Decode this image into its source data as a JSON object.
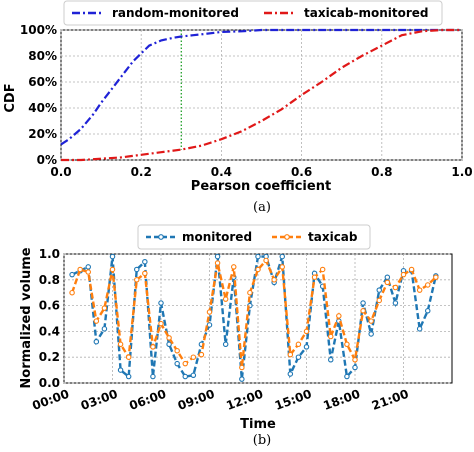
{
  "chart_data": [
    {
      "type": "line",
      "caption": "(a)",
      "xlabel": "Pearson coefficient",
      "ylabel": "CDF",
      "xlim": [
        0,
        1.0
      ],
      "ylim": [
        0,
        1.0
      ],
      "xticks": [
        "0.0",
        "0.2",
        "0.4",
        "0.6",
        "0.8",
        "1.0"
      ],
      "yticks": [
        "0%",
        "20%",
        "40%",
        "60%",
        "80%",
        "100%"
      ],
      "grid": true,
      "legend_position": "top",
      "series": [
        {
          "name": "random-monitored",
          "color": "#1f22d6",
          "style": "dash-dot",
          "x": [
            0,
            0.02,
            0.05,
            0.08,
            0.1,
            0.12,
            0.15,
            0.18,
            0.2,
            0.22,
            0.25,
            0.28,
            0.3,
            0.33,
            0.36,
            0.4,
            0.45,
            0.5,
            0.6,
            0.7,
            0.8,
            0.9,
            1.0
          ],
          "y": [
            0.12,
            0.16,
            0.24,
            0.35,
            0.44,
            0.52,
            0.64,
            0.76,
            0.82,
            0.88,
            0.92,
            0.94,
            0.95,
            0.96,
            0.97,
            0.985,
            0.99,
            1.0,
            1.0,
            1.0,
            1.0,
            1.0,
            1.0
          ]
        },
        {
          "name": "taxicab-monitored",
          "color": "#e01818",
          "style": "dash-dot",
          "x": [
            0,
            0.05,
            0.1,
            0.15,
            0.2,
            0.25,
            0.3,
            0.35,
            0.4,
            0.45,
            0.5,
            0.55,
            0.6,
            0.65,
            0.7,
            0.75,
            0.8,
            0.85,
            0.9,
            0.95,
            1.0
          ],
          "y": [
            0,
            0,
            0.01,
            0.02,
            0.04,
            0.06,
            0.08,
            0.11,
            0.16,
            0.22,
            0.3,
            0.39,
            0.5,
            0.6,
            0.71,
            0.8,
            0.88,
            0.96,
            0.99,
            1.0,
            1.0
          ]
        }
      ],
      "reference_line": {
        "x": 0.3,
        "color": "#22a02a",
        "style": "dotted"
      }
    },
    {
      "type": "line",
      "caption": "(b)",
      "xlabel": "Time",
      "ylabel": "Normalized volume",
      "xlim": [
        0,
        24
      ],
      "ylim": [
        0,
        1.0
      ],
      "xticks": [
        "00:00",
        "03:00",
        "06:00",
        "09:00",
        "12:00",
        "15:00",
        "18:00",
        "21:00"
      ],
      "xtick_hours": [
        0,
        3,
        6,
        9,
        12,
        15,
        18,
        21
      ],
      "yticks": [
        "0.0",
        "0.2",
        "0.4",
        "0.6",
        "0.8",
        "1.0"
      ],
      "grid": true,
      "legend_position": "top",
      "series": [
        {
          "name": "monitored",
          "color": "#1f77b4",
          "style": "dashed-marker",
          "x": [
            0.5,
            1,
            1.5,
            2,
            2.5,
            3,
            3.5,
            4,
            4.5,
            5,
            5.5,
            6,
            6.5,
            7,
            7.5,
            8,
            8.5,
            9,
            9.5,
            10,
            10.5,
            11,
            11.5,
            12,
            12.5,
            13,
            13.5,
            14,
            14.5,
            15,
            15.5,
            16,
            16.5,
            17,
            17.5,
            18,
            18.5,
            19,
            19.5,
            20,
            20.5,
            21,
            21.5,
            22,
            22.5,
            23
          ],
          "y": [
            0.84,
            0.87,
            0.9,
            0.32,
            0.42,
            0.98,
            0.1,
            0.05,
            0.88,
            0.94,
            0.05,
            0.62,
            0.3,
            0.15,
            0.05,
            0.06,
            0.3,
            0.45,
            0.98,
            0.3,
            0.82,
            0.03,
            0.6,
            0.98,
            0.98,
            0.78,
            0.98,
            0.07,
            0.2,
            0.28,
            0.85,
            0.75,
            0.18,
            0.48,
            0.05,
            0.12,
            0.62,
            0.38,
            0.72,
            0.82,
            0.62,
            0.87,
            0.87,
            0.42,
            0.56,
            0.83
          ]
        },
        {
          "name": "taxicab",
          "color": "#ff7f0e",
          "style": "dashed-marker",
          "x": [
            0.5,
            1,
            1.5,
            2,
            2.5,
            3,
            3.5,
            4,
            4.5,
            5,
            5.5,
            6,
            6.5,
            7,
            7.5,
            8,
            8.5,
            9,
            9.5,
            10,
            10.5,
            11,
            11.5,
            12,
            12.5,
            13,
            13.5,
            14,
            14.5,
            15,
            15.5,
            16,
            16.5,
            17,
            17.5,
            18,
            18.5,
            19,
            19.5,
            20,
            20.5,
            21,
            21.5,
            22,
            22.5,
            23
          ],
          "y": [
            0.7,
            0.88,
            0.86,
            0.48,
            0.58,
            0.88,
            0.3,
            0.2,
            0.8,
            0.85,
            0.28,
            0.46,
            0.35,
            0.25,
            0.15,
            0.2,
            0.22,
            0.55,
            0.93,
            0.65,
            0.9,
            0.12,
            0.7,
            0.88,
            0.95,
            0.8,
            0.9,
            0.22,
            0.3,
            0.4,
            0.82,
            0.88,
            0.36,
            0.52,
            0.3,
            0.18,
            0.56,
            0.48,
            0.64,
            0.78,
            0.74,
            0.84,
            0.88,
            0.72,
            0.76,
            0.82
          ]
        }
      ]
    }
  ]
}
